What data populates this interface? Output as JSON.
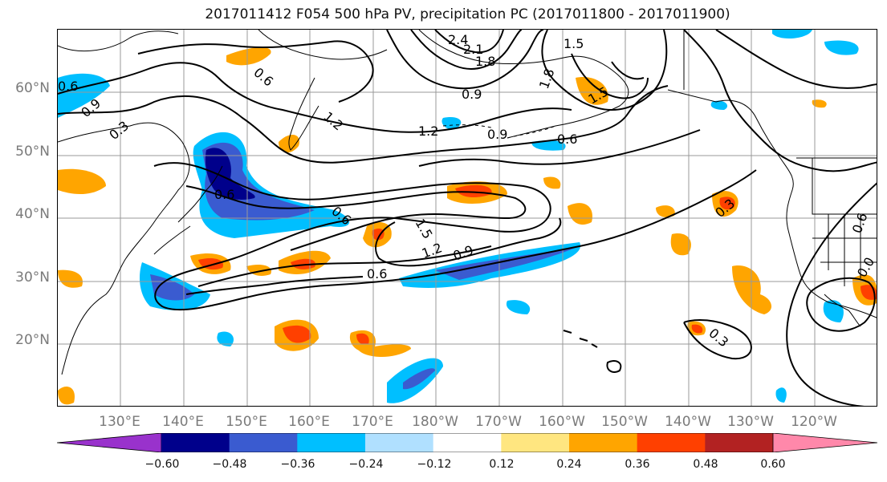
{
  "title": "2017011412 F054 500 hPa PV, precipitation PC (2017011800 - 2017011900)",
  "lat_labels": [
    "60°N",
    "50°N",
    "40°N",
    "30°N",
    "20°N"
  ],
  "lon_labels": [
    "130°E",
    "140°E",
    "150°E",
    "160°E",
    "170°E",
    "180°W",
    "170°W",
    "160°W",
    "150°W",
    "140°W",
    "130°W",
    "120°W"
  ],
  "contour_labels": [
    "2.4",
    "2.1",
    "1.8",
    "1.5",
    "1.8",
    "1.5",
    "0.9",
    "0.6",
    "0.9",
    "0.3",
    "1.2",
    "1.2",
    "0.9",
    "0.6",
    "0.6",
    "0.6",
    "1.5",
    "1.2",
    "0.9",
    "0.6",
    "0.3",
    "0.3",
    "0.6",
    "0.0"
  ],
  "colorbar": {
    "ticks": [
      "−0.60",
      "−0.48",
      "−0.36",
      "−0.24",
      "−0.12",
      "0.12",
      "0.24",
      "0.36",
      "0.48",
      "0.60"
    ],
    "colors": [
      "#9932cc",
      "#00008b",
      "#3a5bd0",
      "#00bfff",
      "#b0e0ff",
      "#ffffff",
      "#ffe680",
      "#ffa500",
      "#ff4000",
      "#b22222",
      "#ff88aa"
    ]
  },
  "colors": {
    "land_outline": "#000000",
    "contour": "#000000",
    "grid": "#999999"
  }
}
